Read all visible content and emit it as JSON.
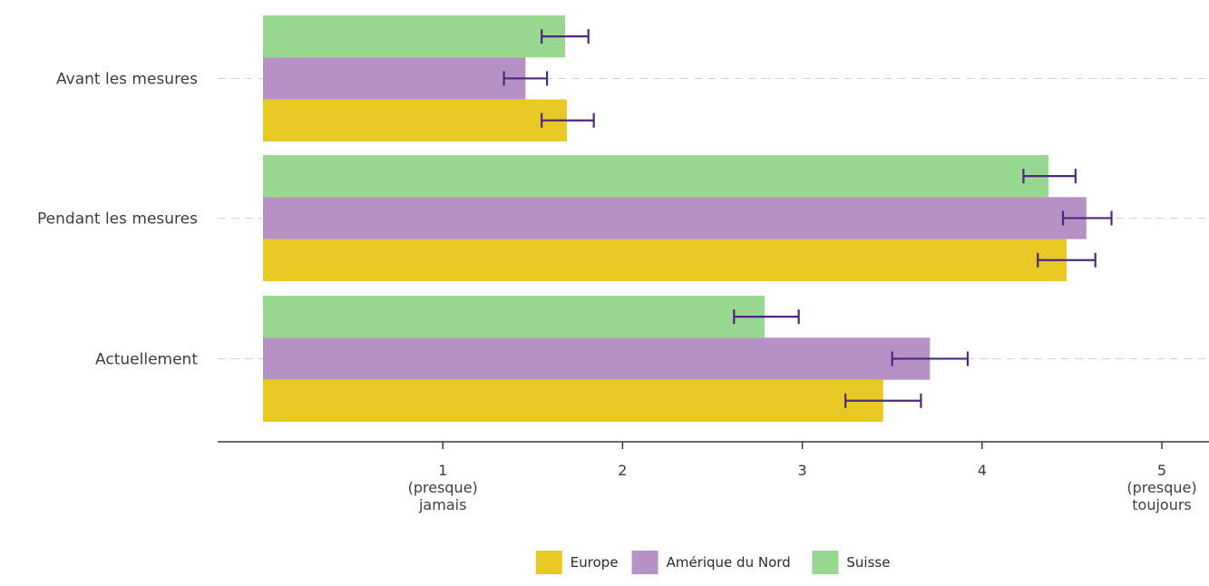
{
  "chart_data": {
    "type": "bar",
    "orientation": "horizontal",
    "categories": [
      "Avant les mesures",
      "Pendant les mesures",
      "Actuellement"
    ],
    "series": [
      {
        "name": "Suisse",
        "color": "#98d78f",
        "values": [
          1.68,
          4.37,
          2.79
        ],
        "err_low": [
          1.55,
          4.23,
          2.62
        ],
        "err_high": [
          1.81,
          4.52,
          2.98
        ]
      },
      {
        "name": "Amérique du Nord",
        "color": "#b591c5",
        "values": [
          1.46,
          4.58,
          3.71
        ],
        "err_low": [
          1.34,
          4.45,
          3.5
        ],
        "err_high": [
          1.58,
          4.72,
          3.92
        ]
      },
      {
        "name": "Europe",
        "color": "#e8c822",
        "values": [
          1.69,
          4.47,
          3.45
        ],
        "err_low": [
          1.55,
          4.31,
          3.24
        ],
        "err_high": [
          1.84,
          4.63,
          3.66
        ]
      }
    ],
    "legend_order": [
      "Europe",
      "Amérique du Nord",
      "Suisse"
    ],
    "xlim": [
      0,
      5.2
    ],
    "xticks": [
      {
        "value": 1,
        "lines": [
          "1",
          "(presque)",
          "jamais"
        ]
      },
      {
        "value": 2,
        "lines": [
          "2"
        ]
      },
      {
        "value": 3,
        "lines": [
          "3"
        ]
      },
      {
        "value": 4,
        "lines": [
          "4"
        ]
      },
      {
        "value": 5,
        "lines": [
          "5",
          "(presque)",
          "toujours"
        ]
      }
    ],
    "error_bar_color": "#4b2a7a",
    "grid": "dashed-horizontal",
    "legend_position": "bottom-center"
  }
}
